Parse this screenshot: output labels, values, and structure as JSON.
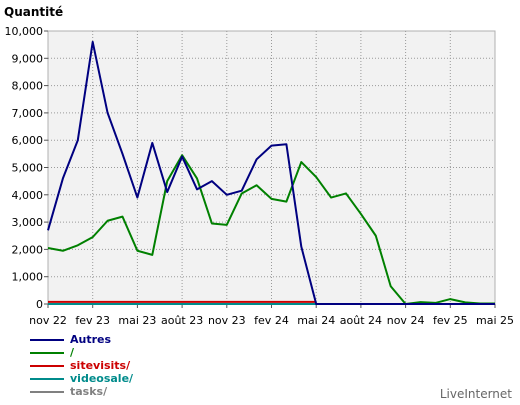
{
  "brand": "LiveInternet",
  "chart_data": {
    "type": "line",
    "ylabel": "Quantité",
    "ylim": [
      0,
      10000
    ],
    "y_ticks": [
      "0",
      "1,000",
      "2,000",
      "3,000",
      "4,000",
      "5,000",
      "6,000",
      "7,000",
      "8,000",
      "9,000",
      "10,000"
    ],
    "x_tick_labels": [
      "nov 22",
      "fev 23",
      "mai 23",
      "août 23",
      "nov 23",
      "fev 24",
      "mai 24",
      "août 24",
      "nov 24",
      "fev 25",
      "mai 25"
    ],
    "grid": true,
    "legend_position": "bottom-left",
    "series": [
      {
        "name": "Autres",
        "color": "#000080",
        "values": [
          2700,
          4600,
          6000,
          9600,
          7000,
          5500,
          3900,
          5900,
          4100,
          5400,
          4200,
          4500,
          4000,
          4150,
          5300,
          5800,
          5850,
          2100,
          0,
          0,
          0,
          0,
          0,
          0,
          0,
          0,
          0,
          0,
          0,
          0,
          0
        ]
      },
      {
        "name": "/",
        "color": "#008000",
        "values": [
          2050,
          1950,
          2150,
          2450,
          3050,
          3200,
          1950,
          1800,
          4500,
          5450,
          4600,
          2950,
          2900,
          4050,
          4350,
          3850,
          3750,
          5200,
          4650,
          3900,
          4050,
          3300,
          2500,
          650,
          0,
          70,
          40,
          180,
          60,
          20,
          20
        ]
      },
      {
        "name": "sitevisits/",
        "color": "#cc0000",
        "values": [
          80,
          80,
          80,
          80,
          80,
          80,
          80,
          80,
          80,
          80,
          80,
          80,
          80,
          80,
          80,
          80,
          80,
          80,
          80,
          null,
          null,
          null,
          null,
          null,
          null,
          null,
          null,
          null,
          null,
          null,
          null
        ]
      },
      {
        "name": "videosale/",
        "color": "#008b8b",
        "values": [
          0,
          0,
          0,
          0,
          0,
          0,
          0,
          0,
          0,
          0,
          0,
          0,
          0,
          0,
          0,
          0,
          0,
          0,
          0,
          0,
          0,
          0,
          0,
          0,
          0,
          0,
          0,
          0,
          0,
          0,
          0
        ]
      },
      {
        "name": "tasks/",
        "color": "#808080",
        "values": [
          0,
          0,
          0,
          0,
          0,
          0,
          0,
          0,
          0,
          0,
          0,
          0,
          0,
          0,
          0,
          0,
          0,
          0,
          0,
          0,
          0,
          0,
          0,
          0,
          0,
          0,
          0,
          0,
          0,
          0,
          0
        ]
      }
    ]
  }
}
